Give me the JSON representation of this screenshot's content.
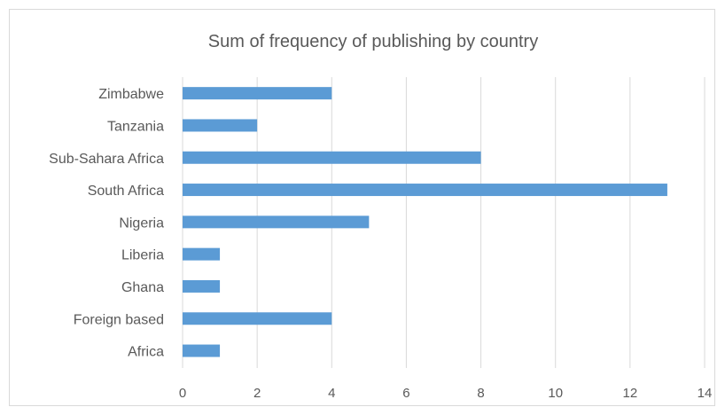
{
  "chart_data": {
    "type": "bar",
    "orientation": "horizontal",
    "title": "Sum of frequency of publishing by country",
    "categories": [
      "Africa",
      "Foreign based",
      "Ghana",
      "Liberia",
      "Nigeria",
      "South Africa",
      "Sub-Sahara Africa",
      "Tanzania",
      "Zimbabwe"
    ],
    "values": [
      1,
      4,
      1,
      1,
      5,
      13,
      8,
      2,
      4
    ],
    "xlim": [
      0,
      14
    ],
    "xticks": [
      0,
      2,
      4,
      6,
      8,
      10,
      12,
      14
    ],
    "grid": true,
    "bar_color": "#5b9bd5",
    "legend": "none"
  }
}
